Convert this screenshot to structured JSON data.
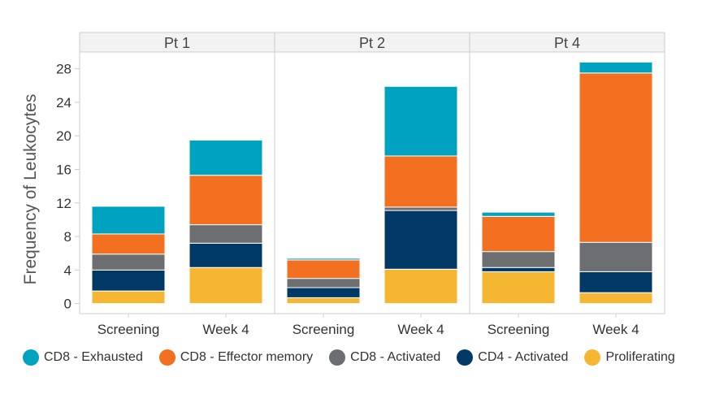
{
  "chart_data": {
    "type": "bar",
    "stacked": true,
    "ylabel": "Frequency of Leukocytes",
    "xlabel": "",
    "ylim": [
      -1.2,
      30
    ],
    "yticks": [
      0,
      4,
      8,
      12,
      16,
      20,
      24,
      28
    ],
    "panels": [
      {
        "name": "Pt 1",
        "categories": [
          "Screening",
          "Week 4"
        ]
      },
      {
        "name": "Pt 2",
        "categories": [
          "Screening",
          "Week 4"
        ]
      },
      {
        "name": "Pt 4",
        "categories": [
          "Screening",
          "Week 4"
        ]
      }
    ],
    "series": [
      {
        "name": "Proliferating",
        "color": "#F5B731",
        "values": [
          1.5,
          4.3,
          0.7,
          4.1,
          3.8,
          1.3
        ]
      },
      {
        "name": "CD4 - Activated",
        "color": "#003966",
        "values": [
          2.5,
          2.9,
          1.2,
          7.0,
          0.5,
          2.5
        ]
      },
      {
        "name": "CD8 - Activated",
        "color": "#6D6E71",
        "values": [
          1.9,
          2.2,
          1.1,
          0.4,
          1.9,
          3.5
        ]
      },
      {
        "name": "CD8 - Effector memory",
        "color": "#F37021",
        "values": [
          2.4,
          5.9,
          2.2,
          6.1,
          4.2,
          20.2
        ]
      },
      {
        "name": "CD8 - Exhausted",
        "color": "#00A3BF",
        "values": [
          3.3,
          4.2,
          0.2,
          8.3,
          0.5,
          1.3
        ]
      }
    ],
    "legend_order": [
      "CD8 - Exhausted",
      "CD8 - Effector memory",
      "CD8 - Activated",
      "CD4 - Activated",
      "Proliferating"
    ],
    "legend_position": "bottom"
  }
}
